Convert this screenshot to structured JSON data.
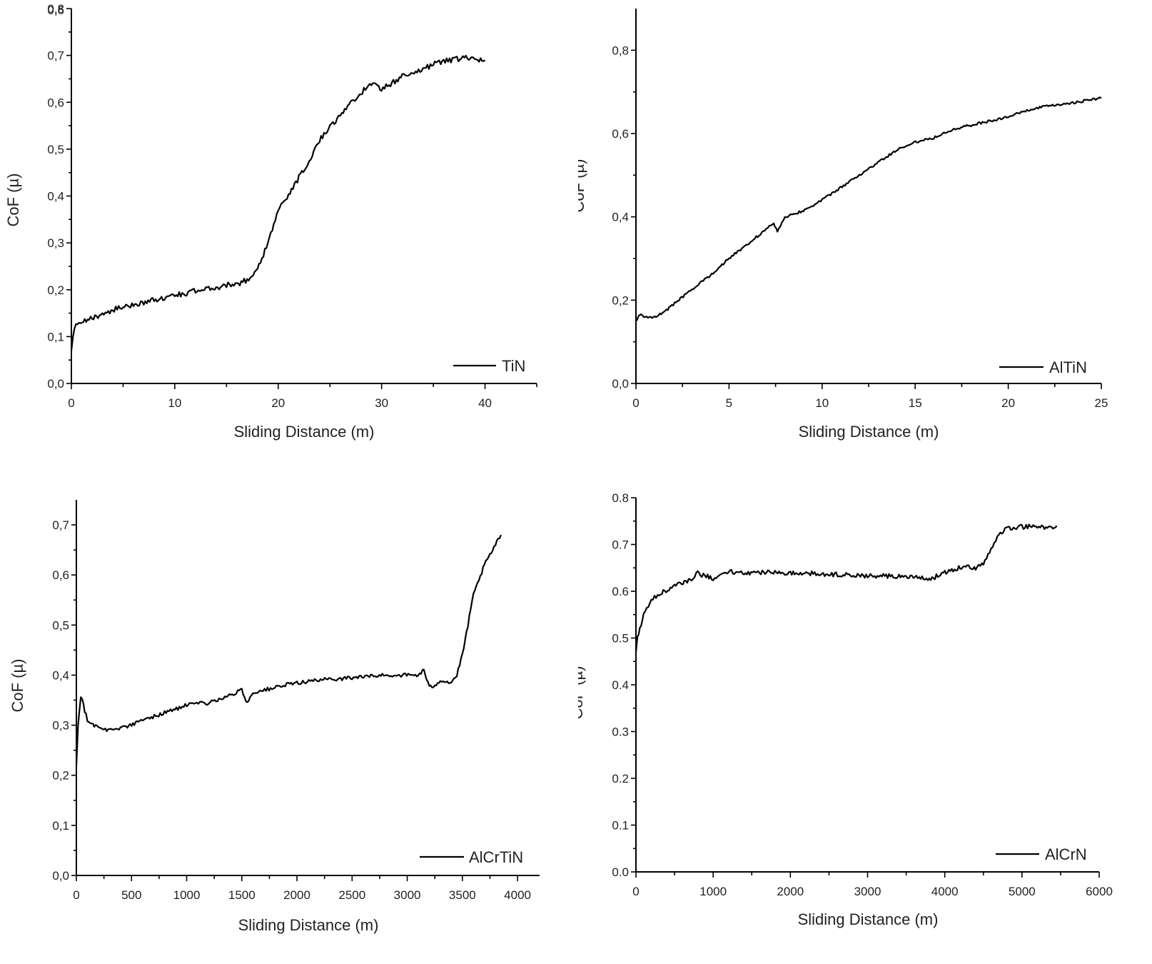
{
  "chart_data": [
    {
      "type": "line",
      "xlabel": "Sliding Distance (m)",
      "ylabel": "CoF (µ)",
      "xlim": [
        0,
        45
      ],
      "ylim": [
        0,
        0.8
      ],
      "xticks": [
        0,
        10,
        20,
        30,
        40
      ],
      "xtick_labels": [
        "0",
        "10",
        "20",
        "30",
        "40"
      ],
      "yticks": [
        0,
        0.1,
        0.2,
        0.3,
        0.4,
        0.5,
        0.6,
        0.7,
        0.8
      ],
      "ytick_labels": [
        "0,0",
        "0,1",
        "0,2",
        "0,3",
        "0,4",
        "0,5",
        "0,6",
        "0,7",
        "0,8"
      ],
      "top_label": "0,6",
      "legend_position": "bottom-right",
      "noise": 0.006,
      "series": [
        {
          "name": "TiN",
          "x": [
            0,
            0.3,
            2,
            4,
            6,
            8,
            10,
            12,
            14,
            16,
            17,
            18,
            19,
            20,
            21,
            22,
            23,
            24,
            25,
            26,
            27,
            28,
            29,
            30,
            31,
            32,
            33,
            34,
            35,
            36,
            37,
            38,
            39,
            40
          ],
          "y": [
            0.07,
            0.12,
            0.14,
            0.157,
            0.168,
            0.178,
            0.188,
            0.197,
            0.205,
            0.213,
            0.22,
            0.245,
            0.3,
            0.37,
            0.4,
            0.44,
            0.47,
            0.52,
            0.55,
            0.57,
            0.6,
            0.62,
            0.64,
            0.63,
            0.64,
            0.655,
            0.665,
            0.67,
            0.68,
            0.69,
            0.69,
            0.695,
            0.69,
            0.69
          ]
        }
      ]
    },
    {
      "type": "line",
      "xlabel": "Sliding Distance (m)",
      "ylabel": "CoF (µ)",
      "xlim": [
        0,
        25
      ],
      "ylim": [
        0,
        0.9
      ],
      "xticks": [
        0,
        5,
        10,
        15,
        20,
        25
      ],
      "xtick_labels": [
        "0",
        "5",
        "10",
        "15",
        "20",
        "25"
      ],
      "yticks": [
        0,
        0.2,
        0.4,
        0.6,
        0.8
      ],
      "ytick_labels": [
        "0,0",
        "0,2",
        "0,4",
        "0,6",
        "0,8"
      ],
      "legend_position": "bottom-right",
      "noise": 0.003,
      "series": [
        {
          "name": "AlTiN",
          "x": [
            0,
            0.2,
            0.5,
            1,
            1.5,
            2,
            3,
            4,
            5,
            6,
            7,
            7.4,
            7.6,
            8,
            9,
            10,
            11,
            12,
            13,
            14,
            15,
            16,
            17,
            18,
            19,
            20,
            21,
            22,
            23,
            24,
            25
          ],
          "y": [
            0.15,
            0.165,
            0.16,
            0.16,
            0.17,
            0.19,
            0.225,
            0.26,
            0.3,
            0.335,
            0.37,
            0.385,
            0.365,
            0.4,
            0.415,
            0.44,
            0.47,
            0.5,
            0.53,
            0.56,
            0.58,
            0.59,
            0.61,
            0.62,
            0.63,
            0.64,
            0.655,
            0.665,
            0.67,
            0.678,
            0.685
          ]
        }
      ]
    },
    {
      "type": "line",
      "xlabel": "Sliding Distance (m)",
      "ylabel": "CoF (µ)",
      "xlim": [
        0,
        4200
      ],
      "ylim": [
        0,
        0.75
      ],
      "xticks": [
        0,
        500,
        1000,
        1500,
        2000,
        2500,
        3000,
        3500,
        4000
      ],
      "xtick_labels": [
        "0",
        "500",
        "1000",
        "1500",
        "2000",
        "2500",
        "3000",
        "3500",
        "4000"
      ],
      "yticks": [
        0,
        0.1,
        0.2,
        0.3,
        0.4,
        0.5,
        0.6,
        0.7
      ],
      "ytick_labels": [
        "0,0",
        "0,1",
        "0,2",
        "0,3",
        "0,4",
        "0,5",
        "0,6",
        "0,7"
      ],
      "legend_position": "bottom-right",
      "noise": 0.004,
      "series": [
        {
          "name": "AlCrTiN",
          "x": [
            0,
            15,
            40,
            100,
            200,
            300,
            400,
            500,
            600,
            800,
            1000,
            1200,
            1400,
            1500,
            1550,
            1600,
            1800,
            2000,
            2200,
            2500,
            2800,
            3100,
            3150,
            3200,
            3250,
            3300,
            3400,
            3450,
            3500,
            3550,
            3600,
            3700,
            3800,
            3850
          ],
          "y": [
            0.22,
            0.3,
            0.36,
            0.31,
            0.295,
            0.29,
            0.295,
            0.3,
            0.31,
            0.325,
            0.34,
            0.345,
            0.36,
            0.37,
            0.345,
            0.365,
            0.375,
            0.385,
            0.39,
            0.395,
            0.4,
            0.4,
            0.41,
            0.375,
            0.38,
            0.39,
            0.385,
            0.4,
            0.44,
            0.5,
            0.56,
            0.62,
            0.66,
            0.68
          ]
        }
      ]
    },
    {
      "type": "line",
      "xlabel": "Sliding Distance (m)",
      "ylabel": "CoF (µ)",
      "xlim": [
        0,
        6000
      ],
      "ylim": [
        0,
        0.8
      ],
      "xticks": [
        0,
        1000,
        2000,
        3000,
        4000,
        5000,
        6000
      ],
      "xtick_labels": [
        "0",
        "1000",
        "2000",
        "3000",
        "4000",
        "5000",
        "6000"
      ],
      "yticks": [
        0,
        0.1,
        0.2,
        0.3,
        0.4,
        0.5,
        0.6,
        0.7,
        0.8
      ],
      "ytick_labels": [
        "0.0",
        "0.1",
        "0.2",
        "0.3",
        "0.4",
        "0.5",
        "0.6",
        "0.7",
        "0.8"
      ],
      "legend_position": "bottom-right",
      "noise": 0.005,
      "series": [
        {
          "name": "AlCrN",
          "x": [
            0,
            20,
            50,
            100,
            200,
            300,
            500,
            700,
            800,
            1000,
            1200,
            1400,
            1600,
            2000,
            2500,
            3000,
            3500,
            3800,
            4000,
            4200,
            4400,
            4500,
            4600,
            4700,
            4800,
            5000,
            5200,
            5400,
            5450
          ],
          "y": [
            0.47,
            0.5,
            0.52,
            0.55,
            0.58,
            0.595,
            0.61,
            0.625,
            0.638,
            0.628,
            0.642,
            0.638,
            0.64,
            0.64,
            0.636,
            0.633,
            0.632,
            0.625,
            0.64,
            0.652,
            0.65,
            0.66,
            0.69,
            0.72,
            0.735,
            0.738,
            0.738,
            0.735,
            0.74
          ]
        }
      ]
    }
  ]
}
